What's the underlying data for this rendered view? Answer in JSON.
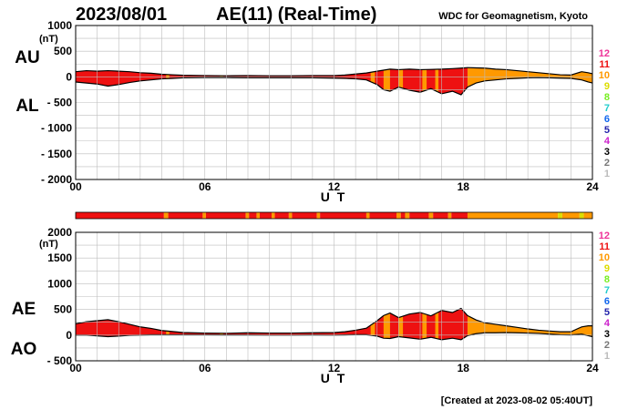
{
  "header": {
    "date": "2023/08/01",
    "title": "AE(11) (Real-Time)",
    "organization": "WDC for Geomagnetism, Kyoto"
  },
  "footer": {
    "created": "[Created at 2023-08-02 05:40UT]"
  },
  "station_legend": {
    "labels": [
      "12",
      "11",
      "10",
      "9",
      "8",
      "7",
      "6",
      "5",
      "4",
      "3",
      "2",
      "1"
    ],
    "colors": [
      "#ee3399",
      "#ee1111",
      "#ff9900",
      "#dddd00",
      "#77ee22",
      "#22cccc",
      "#1166ee",
      "#2222aa",
      "#cc22cc",
      "#000000",
      "#777777",
      "#bbbbbb"
    ]
  },
  "colors": {
    "station_11": "#ee2200",
    "station_10": "#ff9900",
    "station_9": "#dddd00",
    "outline": "#000000"
  },
  "chart_data": [
    {
      "type": "area",
      "side_labels": [
        "AU",
        "AL"
      ],
      "unit": "(nT)",
      "xlabel": "U T",
      "x_ticks": [
        "00",
        "06",
        "12",
        "18",
        "24"
      ],
      "x_range": [
        0,
        24
      ],
      "y_ticks": [
        "1000",
        "500",
        "0",
        "- 500",
        "- 1000",
        "- 1500",
        "- 2000"
      ],
      "y_tick_values": [
        1000,
        500,
        0,
        -500,
        -1000,
        -1500,
        -2000
      ],
      "ylim": [
        -2000,
        1000
      ],
      "grid": true,
      "x": [
        0,
        0.5,
        1,
        1.5,
        2,
        2.5,
        3,
        3.5,
        4,
        4.5,
        5,
        6,
        7,
        8,
        9,
        10,
        11,
        12,
        12.5,
        13,
        13.5,
        14,
        14.3,
        14.6,
        15,
        15.5,
        16,
        16.5,
        17,
        17.5,
        17.9,
        18.2,
        18.6,
        19,
        19.5,
        20,
        20.5,
        21,
        21.5,
        22,
        22.5,
        23,
        23.5,
        23.8,
        24
      ],
      "series": [
        {
          "values": [
            100,
            120,
            110,
            120,
            110,
            100,
            80,
            70,
            50,
            40,
            30,
            25,
            20,
            25,
            20,
            20,
            25,
            25,
            35,
            55,
            75,
            110,
            130,
            150,
            140,
            150,
            140,
            145,
            150,
            160,
            170,
            180,
            175,
            170,
            150,
            140,
            120,
            100,
            80,
            60,
            40,
            35,
            100,
            80,
            60
          ]
        },
        {
          "values": [
            -100,
            -120,
            -140,
            -180,
            -150,
            -110,
            -80,
            -60,
            -40,
            -30,
            -20,
            -15,
            -15,
            -20,
            -20,
            -20,
            -20,
            -25,
            -30,
            -40,
            -60,
            -150,
            -250,
            -280,
            -200,
            -260,
            -300,
            -230,
            -330,
            -280,
            -350,
            -200,
            -120,
            -80,
            -60,
            -40,
            -30,
            -20,
            -15,
            -20,
            -25,
            -30,
            -60,
            -100,
            -120
          ]
        }
      ],
      "station_count": [
        {
          "from": 0,
          "to": 18.2,
          "count": 11
        },
        {
          "from": 18.2,
          "to": 24,
          "count": 10
        }
      ]
    },
    {
      "type": "area",
      "side_labels": [
        "AE",
        "AO"
      ],
      "unit": "(nT)",
      "xlabel": "U T",
      "x_ticks": [
        "00",
        "06",
        "12",
        "18",
        "24"
      ],
      "x_range": [
        0,
        24
      ],
      "y_ticks": [
        "2000",
        "1500",
        "1000",
        "500",
        "0",
        "- 500"
      ],
      "y_tick_values": [
        2000,
        1500,
        1000,
        500,
        0,
        -500
      ],
      "ylim": [
        -500,
        2000
      ],
      "grid": true,
      "x": [
        0,
        0.5,
        1,
        1.5,
        2,
        2.5,
        3,
        3.5,
        4,
        4.5,
        5,
        6,
        7,
        8,
        9,
        10,
        11,
        12,
        12.5,
        13,
        13.5,
        14,
        14.3,
        14.6,
        15,
        15.5,
        16,
        16.5,
        17,
        17.5,
        17.9,
        18.2,
        18.6,
        19,
        19.5,
        20,
        20.5,
        21,
        21.5,
        22,
        22.5,
        23,
        23.5,
        23.8,
        24
      ],
      "series": [
        {
          "values": [
            220,
            260,
            280,
            300,
            260,
            210,
            160,
            130,
            90,
            70,
            50,
            40,
            35,
            45,
            40,
            40,
            45,
            50,
            65,
            95,
            135,
            280,
            380,
            430,
            340,
            410,
            440,
            375,
            480,
            440,
            520,
            380,
            295,
            240,
            210,
            180,
            150,
            120,
            95,
            80,
            65,
            65,
            160,
            180,
            180
          ]
        },
        {
          "values": [
            0,
            0,
            -15,
            -30,
            -20,
            -5,
            0,
            5,
            5,
            5,
            5,
            5,
            3,
            3,
            0,
            0,
            3,
            0,
            3,
            8,
            8,
            -20,
            -60,
            -65,
            -30,
            -55,
            -80,
            -43,
            -90,
            -60,
            -90,
            -10,
            28,
            45,
            45,
            50,
            45,
            40,
            33,
            20,
            8,
            3,
            20,
            -10,
            -30
          ]
        }
      ],
      "station_count": [
        {
          "from": 0,
          "to": 18.2,
          "count": 11
        },
        {
          "from": 18.2,
          "to": 24,
          "count": 10
        }
      ]
    }
  ],
  "station_strip": [
    {
      "from": 0,
      "to": 4.1,
      "count": 11
    },
    {
      "from": 4.1,
      "to": 4.3,
      "count": 10
    },
    {
      "from": 4.3,
      "to": 5.9,
      "count": 11
    },
    {
      "from": 5.9,
      "to": 6.05,
      "count": 10
    },
    {
      "from": 6.05,
      "to": 7.9,
      "count": 11
    },
    {
      "from": 7.9,
      "to": 8.05,
      "count": 10
    },
    {
      "from": 8.05,
      "to": 8.4,
      "count": 11
    },
    {
      "from": 8.4,
      "to": 8.55,
      "count": 10
    },
    {
      "from": 8.55,
      "to": 9.1,
      "count": 11
    },
    {
      "from": 9.1,
      "to": 9.25,
      "count": 10
    },
    {
      "from": 9.25,
      "to": 9.9,
      "count": 11
    },
    {
      "from": 9.9,
      "to": 10.05,
      "count": 10
    },
    {
      "from": 10.05,
      "to": 11.2,
      "count": 11
    },
    {
      "from": 11.2,
      "to": 11.35,
      "count": 10
    },
    {
      "from": 11.35,
      "to": 13.5,
      "count": 11
    },
    {
      "from": 13.5,
      "to": 13.65,
      "count": 10
    },
    {
      "from": 13.65,
      "to": 14.9,
      "count": 11
    },
    {
      "from": 14.9,
      "to": 15.1,
      "count": 10
    },
    {
      "from": 15.1,
      "to": 15.3,
      "count": 11
    },
    {
      "from": 15.3,
      "to": 15.5,
      "count": 10
    },
    {
      "from": 15.5,
      "to": 16.4,
      "count": 11
    },
    {
      "from": 16.4,
      "to": 16.6,
      "count": 10
    },
    {
      "from": 16.6,
      "to": 17.3,
      "count": 11
    },
    {
      "from": 17.3,
      "to": 17.45,
      "count": 10
    },
    {
      "from": 17.45,
      "to": 18.2,
      "count": 11
    },
    {
      "from": 18.2,
      "to": 22.4,
      "count": 10
    },
    {
      "from": 22.4,
      "to": 22.6,
      "count": 9
    },
    {
      "from": 22.6,
      "to": 23.4,
      "count": 10
    },
    {
      "from": 23.4,
      "to": 23.6,
      "count": 9
    },
    {
      "from": 23.6,
      "to": 24,
      "count": 10
    }
  ],
  "upper_bands": [
    {
      "from": 4.2,
      "to": 4.35,
      "count": 10
    },
    {
      "from": 6.7,
      "to": 6.85,
      "count": 10
    },
    {
      "from": 13.7,
      "to": 13.9,
      "count": 10
    },
    {
      "from": 14.3,
      "to": 14.6,
      "count": 10
    },
    {
      "from": 15.0,
      "to": 15.2,
      "count": 10
    },
    {
      "from": 16.1,
      "to": 16.3,
      "count": 10
    },
    {
      "from": 16.7,
      "to": 16.85,
      "count": 10
    },
    {
      "from": 23.5,
      "to": 23.7,
      "count": 9
    }
  ]
}
